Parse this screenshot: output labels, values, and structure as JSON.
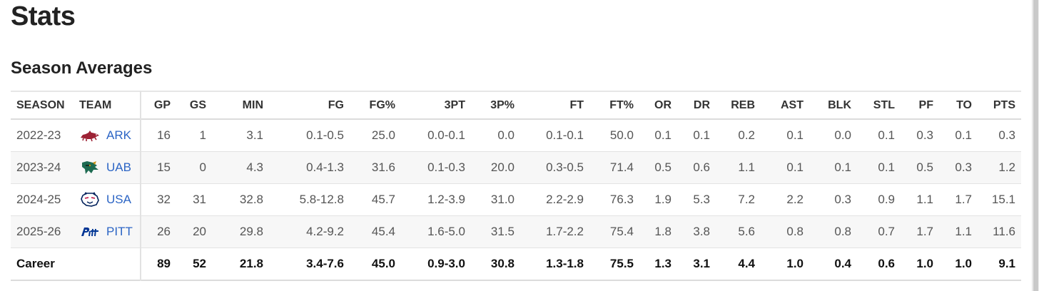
{
  "page": {
    "title": "Stats"
  },
  "section": {
    "title": "Season Averages"
  },
  "columns": [
    "SEASON",
    "TEAM",
    "GP",
    "GS",
    "MIN",
    "FG",
    "FG%",
    "3PT",
    "3P%",
    "FT",
    "FT%",
    "OR",
    "DR",
    "REB",
    "AST",
    "BLK",
    "STL",
    "PF",
    "TO",
    "PTS"
  ],
  "rows": [
    {
      "season": "2022-23",
      "team": "ARK",
      "logo": "arkansas-razorback-icon",
      "gp": "16",
      "gs": "1",
      "min": "3.1",
      "fg": "0.1-0.5",
      "fg_pct": "25.0",
      "tpt": "0.0-0.1",
      "tp_pct": "0.0",
      "ft": "0.1-0.1",
      "ft_pct": "50.0",
      "or": "0.1",
      "dr": "0.1",
      "reb": "0.2",
      "ast": "0.1",
      "blk": "0.0",
      "stl": "0.1",
      "pf": "0.3",
      "to": "0.1",
      "pts": "0.3"
    },
    {
      "season": "2023-24",
      "team": "UAB",
      "logo": "uab-dragon-icon",
      "gp": "15",
      "gs": "0",
      "min": "4.3",
      "fg": "0.4-1.3",
      "fg_pct": "31.6",
      "tpt": "0.1-0.3",
      "tp_pct": "20.0",
      "ft": "0.3-0.5",
      "ft_pct": "71.4",
      "or": "0.5",
      "dr": "0.6",
      "reb": "1.1",
      "ast": "0.1",
      "blk": "0.1",
      "stl": "0.1",
      "pf": "0.5",
      "to": "0.3",
      "pts": "1.2"
    },
    {
      "season": "2024-25",
      "team": "USA",
      "logo": "south-alabama-jaguar-icon",
      "gp": "32",
      "gs": "31",
      "min": "32.8",
      "fg": "5.8-12.8",
      "fg_pct": "45.7",
      "tpt": "1.2-3.9",
      "tp_pct": "31.0",
      "ft": "2.2-2.9",
      "ft_pct": "76.3",
      "or": "1.9",
      "dr": "5.3",
      "reb": "7.2",
      "ast": "2.2",
      "blk": "0.3",
      "stl": "0.9",
      "pf": "1.1",
      "to": "1.7",
      "pts": "15.1"
    },
    {
      "season": "2025-26",
      "team": "PITT",
      "logo": "pitt-script-icon",
      "gp": "26",
      "gs": "20",
      "min": "29.8",
      "fg": "4.2-9.2",
      "fg_pct": "45.4",
      "tpt": "1.6-5.0",
      "tp_pct": "31.5",
      "ft": "1.7-2.2",
      "ft_pct": "75.4",
      "or": "1.8",
      "dr": "3.8",
      "reb": "5.6",
      "ast": "0.8",
      "blk": "0.8",
      "stl": "0.7",
      "pf": "1.7",
      "to": "1.1",
      "pts": "11.6"
    }
  ],
  "career": {
    "label": "Career",
    "gp": "89",
    "gs": "52",
    "min": "21.8",
    "fg": "3.4-7.6",
    "fg_pct": "45.0",
    "tpt": "0.9-3.0",
    "tp_pct": "30.8",
    "ft": "1.3-1.8",
    "ft_pct": "75.5",
    "or": "1.3",
    "dr": "3.1",
    "reb": "4.4",
    "ast": "1.0",
    "blk": "0.4",
    "stl": "0.6",
    "pf": "1.0",
    "to": "1.0",
    "pts": "9.1"
  },
  "colors": {
    "link": "#2c65c5",
    "ark": "#9d2235",
    "uab": "#1e6b52",
    "usa_blue": "#00205b",
    "usa_red": "#bf0d3e",
    "pitt": "#003594"
  }
}
